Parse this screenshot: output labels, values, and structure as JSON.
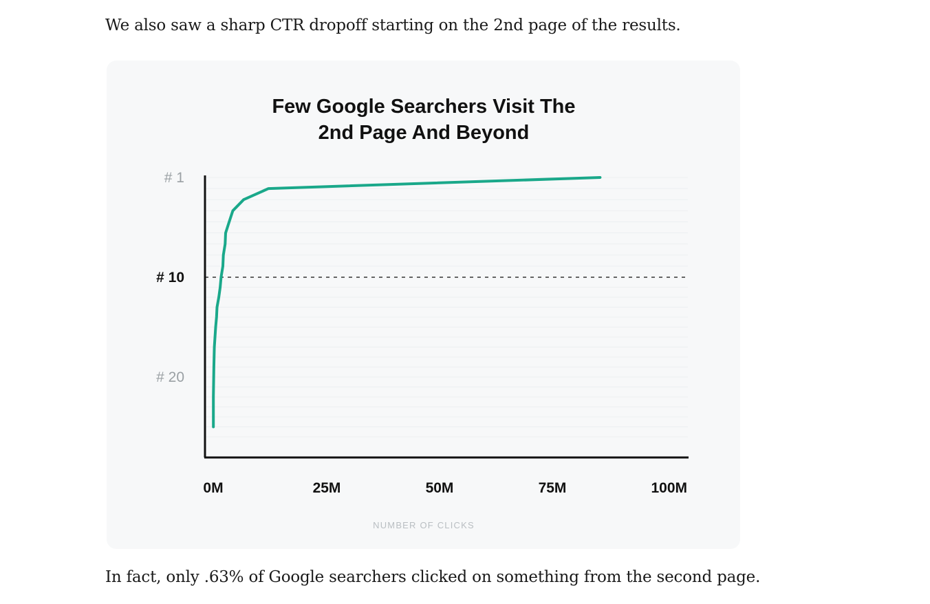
{
  "article": {
    "paragraph_before": "We also saw a sharp CTR dropoff starting on the 2nd page of the results.",
    "paragraph_after": "In fact, only .63% of Google searchers clicked on something from the second page."
  },
  "chart_data": {
    "type": "line",
    "title_line1": "Few Google Searchers Visit The",
    "title_line2": "2nd Page And Beyond",
    "xlabel": "NUMBER OF CLICKS",
    "ylabel": "",
    "x_ticks": [
      "0M",
      "25M",
      "50M",
      "75M",
      "100M"
    ],
    "x_tick_values": [
      0,
      25,
      50,
      75,
      100
    ],
    "xlim": [
      0,
      100
    ],
    "y_ticks": [
      "# 1",
      "# 10",
      "# 20"
    ],
    "y_tick_values": [
      1,
      10,
      20
    ],
    "y_highlight_tick": "# 10",
    "y_reversed": true,
    "ylim": [
      1,
      26
    ],
    "reference_line": {
      "y": 10,
      "style": "dashed"
    },
    "grid": true,
    "line_color": "#1aa88a",
    "series": [
      {
        "x": [
          86.5,
          13.0,
          7.5,
          5.1,
          4.3,
          3.5,
          3.4,
          3.0,
          2.9,
          2.5,
          2.3,
          2.0,
          1.6,
          1.5,
          1.3,
          1.0,
          0.9,
          0.8,
          0.8
        ],
        "y": [
          1,
          2,
          3,
          4,
          5,
          6,
          7,
          8,
          9,
          10,
          11,
          12,
          13,
          14,
          15,
          17,
          19,
          22,
          25
        ]
      }
    ]
  }
}
